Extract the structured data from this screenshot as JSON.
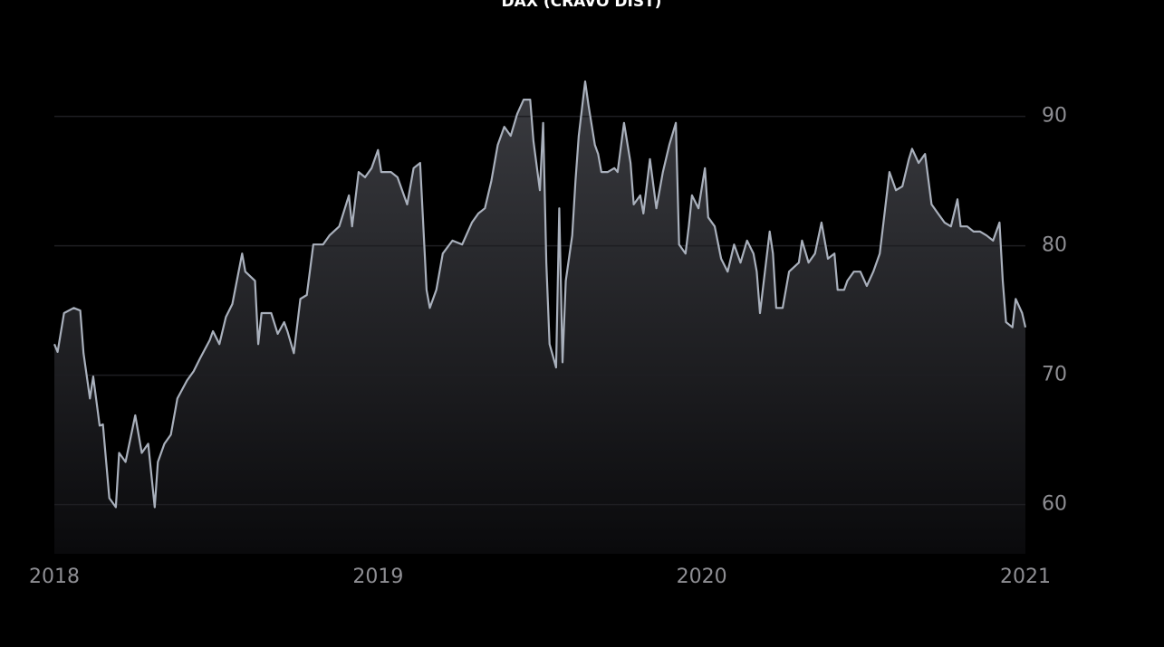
{
  "chart_data": {
    "type": "line",
    "title": "DAX (CRAVO DIST)",
    "x": [
      2018.0,
      2018.01,
      2018.03,
      2018.06,
      2018.08,
      2018.09,
      2018.11,
      2018.12,
      2018.14,
      2018.15,
      2018.17,
      2018.19,
      2018.2,
      2018.22,
      2018.25,
      2018.27,
      2018.29,
      2018.31,
      2018.32,
      2018.34,
      2018.36,
      2018.38,
      2018.41,
      2018.43,
      2018.45,
      2018.48,
      2018.49,
      2018.51,
      2018.53,
      2018.55,
      2018.58,
      2018.59,
      2018.62,
      2018.63,
      2018.64,
      2018.67,
      2018.69,
      2018.71,
      2018.72,
      2018.74,
      2018.76,
      2018.78,
      2018.8,
      2018.83,
      2018.85,
      2018.88,
      2018.91,
      2018.92,
      2018.94,
      2018.96,
      2018.98,
      2019.0,
      2019.01,
      2019.04,
      2019.06,
      2019.09,
      2019.11,
      2019.13,
      2019.15,
      2019.16,
      2019.18,
      2019.2,
      2019.23,
      2019.26,
      2019.29,
      2019.31,
      2019.33,
      2019.35,
      2019.37,
      2019.39,
      2019.41,
      2019.43,
      2019.45,
      2019.47,
      2019.48,
      2019.5,
      2019.51,
      2019.52,
      2019.53,
      2019.55,
      2019.56,
      2019.57,
      2019.58,
      2019.6,
      2019.61,
      2019.62,
      2019.64,
      2019.65,
      2019.67,
      2019.68,
      2019.69,
      2019.71,
      2019.73,
      2019.74,
      2019.76,
      2019.78,
      2019.79,
      2019.81,
      2019.82,
      2019.84,
      2019.86,
      2019.88,
      2019.9,
      2019.92,
      2019.93,
      2019.95,
      2019.96,
      2019.97,
      2019.99,
      2020.01,
      2020.02,
      2020.04,
      2020.06,
      2020.08,
      2020.1,
      2020.12,
      2020.14,
      2020.16,
      2020.17,
      2020.18,
      2020.21,
      2020.22,
      2020.23,
      2020.25,
      2020.27,
      2020.3,
      2020.31,
      2020.33,
      2020.35,
      2020.37,
      2020.39,
      2020.41,
      2020.42,
      2020.44,
      2020.45,
      2020.47,
      2020.49,
      2020.51,
      2020.53,
      2020.55,
      2020.56,
      2020.58,
      2020.6,
      2020.62,
      2020.64,
      2020.65,
      2020.67,
      2020.69,
      2020.71,
      2020.73,
      2020.75,
      2020.77,
      2020.79,
      2020.8,
      2020.82,
      2020.84,
      2020.86,
      2020.88,
      2020.9,
      2020.92,
      2020.93,
      2020.94,
      2020.96,
      2020.97,
      2020.99,
      2021.0
    ],
    "series": [
      {
        "color": "#a9b0bc",
        "values": [
          72.4,
          71.8,
          74.8,
          75.2,
          75.0,
          71.7,
          68.2,
          69.9,
          66.1,
          66.2,
          60.5,
          59.8,
          64.0,
          63.3,
          66.9,
          64.0,
          64.7,
          59.8,
          63.3,
          64.7,
          65.4,
          68.2,
          69.6,
          70.3,
          71.3,
          72.7,
          73.4,
          72.4,
          74.5,
          75.5,
          79.4,
          78.0,
          77.3,
          72.4,
          74.8,
          74.8,
          73.2,
          74.1,
          73.4,
          71.7,
          75.9,
          76.2,
          80.1,
          80.1,
          80.8,
          81.5,
          83.9,
          81.5,
          85.7,
          85.3,
          86.0,
          87.4,
          85.7,
          85.7,
          85.3,
          83.2,
          86.0,
          86.4,
          76.6,
          75.2,
          76.6,
          79.4,
          80.4,
          80.1,
          81.8,
          82.5,
          82.9,
          85.0,
          87.8,
          89.2,
          88.5,
          90.2,
          91.3,
          91.3,
          88.1,
          84.3,
          89.5,
          78.7,
          72.4,
          70.6,
          82.9,
          71.0,
          77.3,
          80.8,
          85.0,
          88.5,
          92.7,
          90.9,
          87.8,
          87.1,
          85.7,
          85.7,
          86.0,
          85.7,
          89.5,
          86.4,
          83.2,
          83.9,
          82.5,
          86.7,
          82.9,
          85.7,
          87.8,
          89.5,
          80.1,
          79.4,
          81.5,
          83.9,
          82.9,
          86.0,
          82.2,
          81.5,
          79.0,
          78.0,
          80.1,
          78.7,
          80.4,
          79.4,
          78.0,
          74.8,
          81.1,
          79.4,
          75.2,
          75.2,
          78.0,
          78.7,
          80.4,
          78.7,
          79.4,
          81.8,
          79.0,
          79.4,
          76.6,
          76.6,
          77.3,
          78.0,
          78.0,
          76.9,
          78.0,
          79.4,
          81.5,
          85.7,
          84.3,
          84.6,
          86.7,
          87.5,
          86.4,
          87.1,
          83.2,
          82.5,
          81.8,
          81.5,
          83.6,
          81.5,
          81.5,
          81.1,
          81.1,
          80.8,
          80.4,
          81.8,
          77.3,
          74.1,
          73.7,
          75.9,
          74.8,
          73.7
        ]
      }
    ],
    "xlim": [
      2018,
      2021
    ],
    "xticks": [
      2018,
      2019,
      2020,
      2021
    ],
    "ylim": [
      56.2,
      94.8
    ],
    "yticks": [
      60,
      70,
      80,
      90
    ],
    "grid": true
  }
}
